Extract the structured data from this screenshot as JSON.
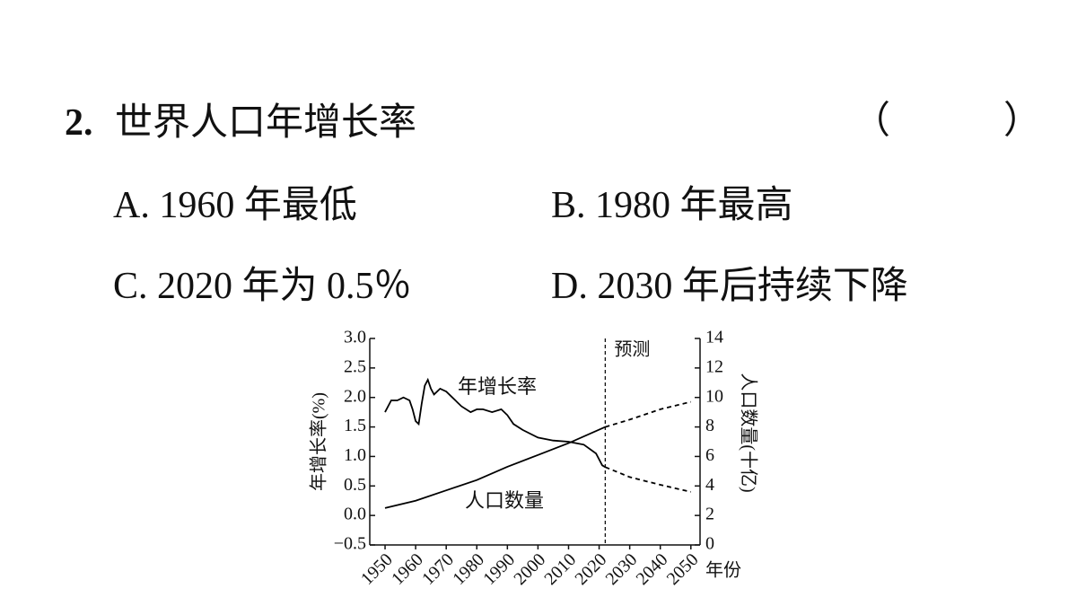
{
  "question": {
    "number": "2.",
    "stem": "世界人口年增长率",
    "answer_blank": "（　　　）"
  },
  "options": [
    "A. 1960 年最低",
    "B. 1980 年最高",
    "C. 2020 年为 0.5％",
    "D. 2030 年后持续下降"
  ],
  "chart_data": {
    "type": "line",
    "xlim": [
      1945,
      2053
    ],
    "xticks": [
      1950,
      1960,
      1970,
      1980,
      1990,
      2000,
      2010,
      2020,
      2030,
      2040,
      2050
    ],
    "ylim": [
      -0.5,
      3.0
    ],
    "yticks": [
      {
        "value": -0.5,
        "label": "−0.5"
      },
      {
        "value": 0,
        "label": "0.0"
      },
      {
        "value": 0.5,
        "label": "0.5"
      },
      {
        "value": 1,
        "label": "1.0"
      },
      {
        "value": 1.5,
        "label": "1.5"
      },
      {
        "value": 2,
        "label": "2.0"
      },
      {
        "value": 2.5,
        "label": "2.5"
      },
      {
        "value": 3,
        "label": "3.0"
      }
    ],
    "y2lim": [
      0,
      14
    ],
    "y2ticks": [
      0,
      2,
      4,
      6,
      8,
      10,
      12,
      14
    ],
    "x_label": "年份",
    "y_label": "年增长率(%)",
    "y2_label": "人口数量(十亿)",
    "forecast": {
      "label": "预测",
      "x": 2022
    },
    "series": [
      {
        "name": "年增长率",
        "color": "#000000",
        "x": [
          1950,
          1952,
          1954,
          1956,
          1958,
          1959,
          1960,
          1961,
          1962,
          1963,
          1964,
          1965,
          1966,
          1968,
          1970,
          1972,
          1975,
          1978,
          1980,
          1982,
          1985,
          1988,
          1990,
          1992,
          1995,
          2000,
          2005,
          2010,
          2015,
          2019,
          2021,
          2022,
          2030,
          2040,
          2050
        ],
        "values": [
          1.75,
          1.95,
          1.95,
          2.0,
          1.95,
          1.8,
          1.6,
          1.55,
          1.9,
          2.2,
          2.3,
          2.15,
          2.05,
          2.15,
          2.1,
          2.0,
          1.85,
          1.75,
          1.8,
          1.8,
          1.75,
          1.8,
          1.7,
          1.55,
          1.45,
          1.32,
          1.27,
          1.25,
          1.2,
          1.05,
          0.85,
          0.82,
          0.65,
          0.52,
          0.4
        ]
      },
      {
        "name": "人口数量",
        "color": "#000000",
        "axis": "y2",
        "x": [
          1950,
          1960,
          1970,
          1980,
          1990,
          2000,
          2010,
          2022,
          2030,
          2040,
          2050
        ],
        "values": [
          2.5,
          3.0,
          3.7,
          4.4,
          5.3,
          6.1,
          6.9,
          8.0,
          8.5,
          9.2,
          9.7
        ]
      }
    ]
  }
}
